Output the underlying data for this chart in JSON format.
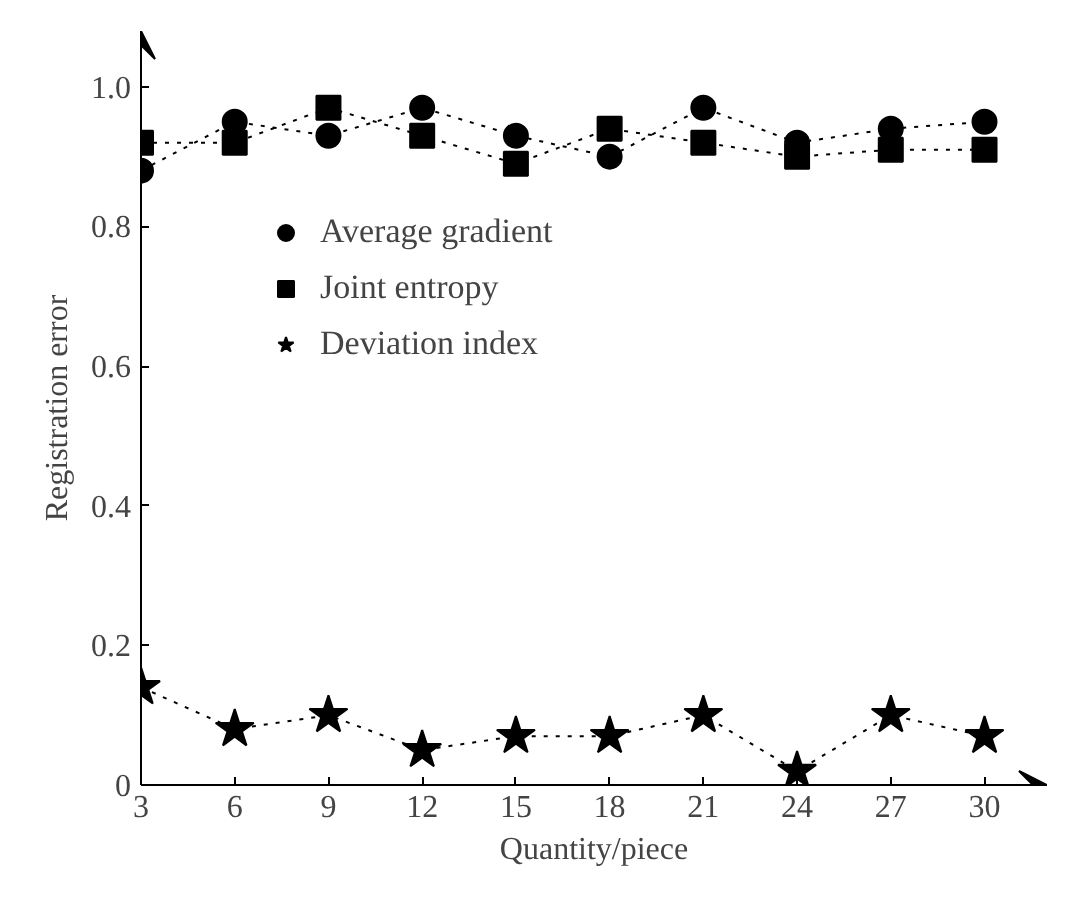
{
  "chart_data": {
    "type": "line",
    "xlabel": "Quantity/piece",
    "ylabel": "Registration error",
    "x": [
      3,
      6,
      9,
      12,
      15,
      18,
      21,
      24,
      27,
      30
    ],
    "series": [
      {
        "name": "Average gradient",
        "color": "#000000",
        "marker": "circle",
        "values": [
          0.88,
          0.95,
          0.93,
          0.97,
          0.93,
          0.9,
          0.97,
          0.92,
          0.94,
          0.95
        ]
      },
      {
        "name": "Joint entropy",
        "color": "#000000",
        "marker": "square",
        "values": [
          0.92,
          0.92,
          0.97,
          0.93,
          0.89,
          0.94,
          0.92,
          0.9,
          0.91,
          0.91
        ]
      },
      {
        "name": "Deviation index",
        "color": "#000000",
        "marker": "star",
        "values": [
          0.14,
          0.08,
          0.1,
          0.05,
          0.07,
          0.07,
          0.1,
          0.02,
          0.1,
          0.07
        ]
      }
    ],
    "xlim": [
      3,
      32
    ],
    "xticks": [
      3,
      6,
      9,
      12,
      15,
      18,
      21,
      24,
      27,
      30
    ],
    "ylim": [
      0,
      1.08
    ],
    "yticks": [
      0,
      {
        "value": 0.2,
        "label": "0.2"
      },
      {
        "value": 0.4,
        "label": "0.4"
      },
      {
        "value": 0.6,
        "label": "0.6"
      },
      {
        "value": 0.8,
        "label": "0.8"
      },
      {
        "value": 1,
        "label": "1.0"
      }
    ],
    "line_style": "dotted",
    "grid": false,
    "legend": "left"
  }
}
